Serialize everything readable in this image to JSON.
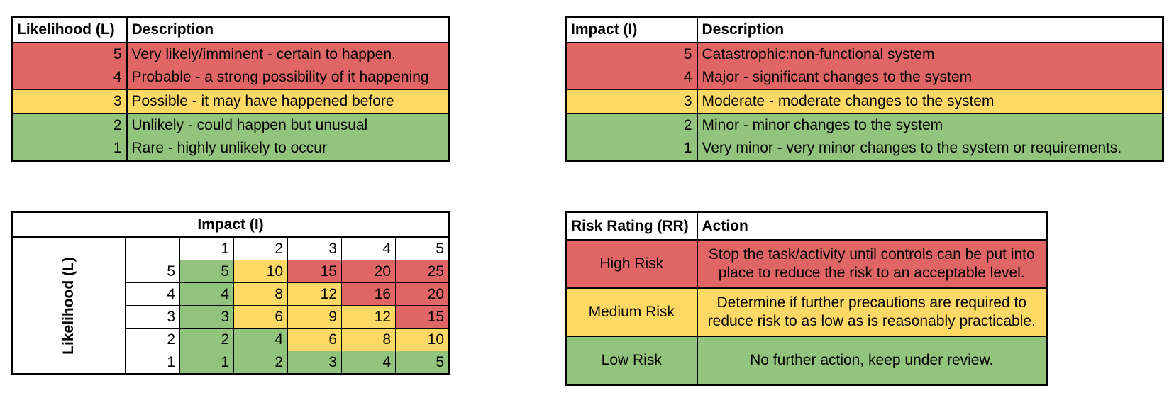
{
  "likelihood": {
    "header_value": "Likelihood (L)",
    "header_desc": "Description",
    "rows": [
      {
        "value": "5",
        "desc": "Very likely/imminent - certain to happen.",
        "color": "#e06666"
      },
      {
        "value": "4",
        "desc": "Probable - a strong possibility of it happening",
        "color": "#e06666"
      },
      {
        "value": "3",
        "desc": "Possible - it may have happened before",
        "color": "#ffd966"
      },
      {
        "value": "2",
        "desc": "Unlikely - could happen but unusual",
        "color": "#93c47d"
      },
      {
        "value": "1",
        "desc": "Rare - highly unlikely to occur",
        "color": "#93c47d"
      }
    ]
  },
  "impact": {
    "header_value": "Impact (I)",
    "header_desc": "Description",
    "rows": [
      {
        "value": "5",
        "desc": "Catastrophic:non-functional system",
        "color": "#e06666"
      },
      {
        "value": "4",
        "desc": "Major - significant changes to the system",
        "color": "#e06666"
      },
      {
        "value": "3",
        "desc": "Moderate - moderate changes to the system",
        "color": "#ffd966"
      },
      {
        "value": "2",
        "desc": "Minor - minor changes to the system",
        "color": "#93c47d"
      },
      {
        "value": "1",
        "desc": "Very minor - very minor changes to the system or requirements.",
        "color": "#93c47d"
      }
    ]
  },
  "matrix": {
    "title": "Impact (I)",
    "row_label": "Likelihood (L)",
    "col_headers": [
      "1",
      "2",
      "3",
      "4",
      "5"
    ],
    "rows": [
      {
        "likelihood": "5",
        "cells": [
          {
            "v": "5",
            "c": "#93c47d"
          },
          {
            "v": "10",
            "c": "#ffd966"
          },
          {
            "v": "15",
            "c": "#e06666"
          },
          {
            "v": "20",
            "c": "#e06666"
          },
          {
            "v": "25",
            "c": "#e06666"
          }
        ]
      },
      {
        "likelihood": "4",
        "cells": [
          {
            "v": "4",
            "c": "#93c47d"
          },
          {
            "v": "8",
            "c": "#ffd966"
          },
          {
            "v": "12",
            "c": "#ffd966"
          },
          {
            "v": "16",
            "c": "#e06666"
          },
          {
            "v": "20",
            "c": "#e06666"
          }
        ]
      },
      {
        "likelihood": "3",
        "cells": [
          {
            "v": "3",
            "c": "#93c47d"
          },
          {
            "v": "6",
            "c": "#ffd966"
          },
          {
            "v": "9",
            "c": "#ffd966"
          },
          {
            "v": "12",
            "c": "#ffd966"
          },
          {
            "v": "15",
            "c": "#e06666"
          }
        ]
      },
      {
        "likelihood": "2",
        "cells": [
          {
            "v": "2",
            "c": "#93c47d"
          },
          {
            "v": "4",
            "c": "#93c47d"
          },
          {
            "v": "6",
            "c": "#ffd966"
          },
          {
            "v": "8",
            "c": "#ffd966"
          },
          {
            "v": "10",
            "c": "#ffd966"
          }
        ]
      },
      {
        "likelihood": "1",
        "cells": [
          {
            "v": "1",
            "c": "#93c47d"
          },
          {
            "v": "2",
            "c": "#93c47d"
          },
          {
            "v": "3",
            "c": "#93c47d"
          },
          {
            "v": "4",
            "c": "#93c47d"
          },
          {
            "v": "5",
            "c": "#93c47d"
          }
        ]
      }
    ]
  },
  "risk": {
    "header_rating": "Risk Rating (RR)",
    "header_action": "Action",
    "rows": [
      {
        "rating": "High Risk",
        "action": "Stop the task/activity until controls can be put into place to reduce the risk to an acceptable level.",
        "color": "#e06666"
      },
      {
        "rating": "Medium Risk",
        "action": "Determine if further precautions are required to reduce risk to as low as is reasonably practicable.",
        "color": "#ffd966"
      },
      {
        "rating": "Low Risk",
        "action": "No further action, keep under review.",
        "color": "#93c47d"
      }
    ]
  }
}
